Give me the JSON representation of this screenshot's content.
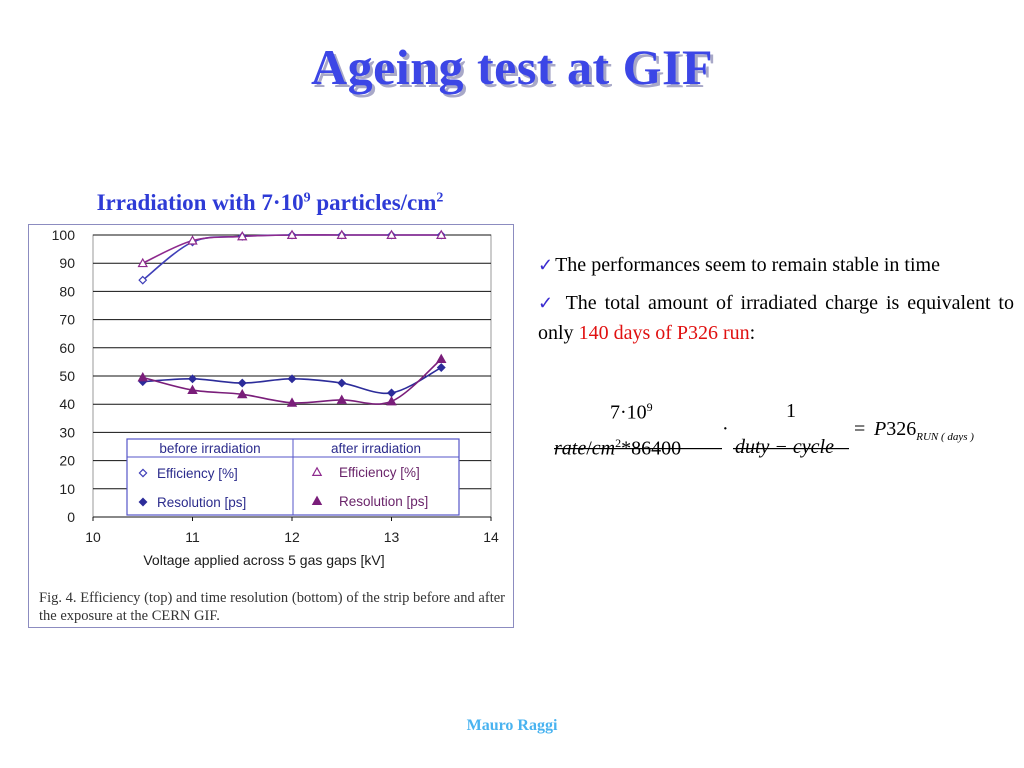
{
  "slide": {
    "title": "Ageing test at GIF",
    "subtitle": {
      "part1": "Irradiation with 7·10",
      "exp1": "9",
      "part2": " particles/cm",
      "exp2": "2"
    },
    "caption": "Fig. 4. Efficiency (top) and time resolution (bottom) of the strip before and after the exposure at the CERN GIF.",
    "bullets": [
      {
        "check": "✓",
        "text": "The performances seem to remain stable in time"
      },
      {
        "check": "✓",
        "text_before": " The total amount of irradiated charge is equivalent to only ",
        "highlight": "140 days of P326 run",
        "text_after": ":"
      }
    ],
    "formula": {
      "num1": "7·10",
      "num1_exp": "9",
      "den1_a": "rate",
      "den1_b": "/",
      "den1_c": "cm",
      "den1_exp": "2",
      "den1_d": "*86400",
      "dot": "·",
      "num2": "1",
      "den2": "duty − cycle",
      "equals": "=",
      "rhs": "P",
      "rhs_num": "326",
      "rhs_sub": "RUN ( days )"
    },
    "footer": "Mauro Raggi",
    "colors": {
      "title": "#3c46e6",
      "highlight": "#e01010",
      "footer": "#49b3f0",
      "check": "#3a2bd0"
    }
  },
  "chart_data": {
    "type": "scatter",
    "xlabel": "Voltage applied across 5 gas gaps [kV]",
    "ylabel": "",
    "xlim": [
      10,
      14
    ],
    "ylim": [
      0,
      100
    ],
    "x_ticks": [
      10,
      11,
      12,
      13,
      14
    ],
    "y_ticks": [
      0,
      10,
      20,
      30,
      40,
      50,
      60,
      70,
      80,
      90,
      100
    ],
    "grid": "horizontal",
    "legend": {
      "placement": "bottom-right",
      "header_before": "before irradiation",
      "header_after": "after irradiation",
      "row1": "Efficiency [%]",
      "row2": "Resolution [ps]"
    },
    "series": [
      {
        "name": "Efficiency [%]",
        "group": "before irradiation",
        "marker": "diamond-open",
        "color": "#3f3fb8",
        "x": [
          10.5,
          11,
          11.5,
          12,
          12.5,
          13,
          13.5
        ],
        "y": [
          84,
          97.5,
          99.5,
          100,
          100,
          100,
          100
        ]
      },
      {
        "name": "Efficiency [%]",
        "group": "after irradiation",
        "marker": "triangle-open",
        "color": "#8e2a8e",
        "x": [
          10.5,
          11,
          11.5,
          12,
          12.5,
          13,
          13.5
        ],
        "y": [
          90,
          98,
          99.5,
          100,
          100,
          100,
          100
        ]
      },
      {
        "name": "Resolution [ps]",
        "group": "before irradiation",
        "marker": "diamond-filled",
        "color": "#2c2c9a",
        "x": [
          10.5,
          11,
          11.5,
          12,
          12.5,
          13,
          13.5
        ],
        "y": [
          48,
          49,
          47.5,
          49,
          47.5,
          44,
          53
        ]
      },
      {
        "name": "Resolution [ps]",
        "group": "after irradiation",
        "marker": "triangle-filled",
        "color": "#7a1e7a",
        "x": [
          10.5,
          11,
          11.5,
          12,
          12.5,
          13,
          13.5
        ],
        "y": [
          49.5,
          45,
          43.5,
          40.5,
          41.5,
          41,
          56
        ]
      }
    ]
  }
}
